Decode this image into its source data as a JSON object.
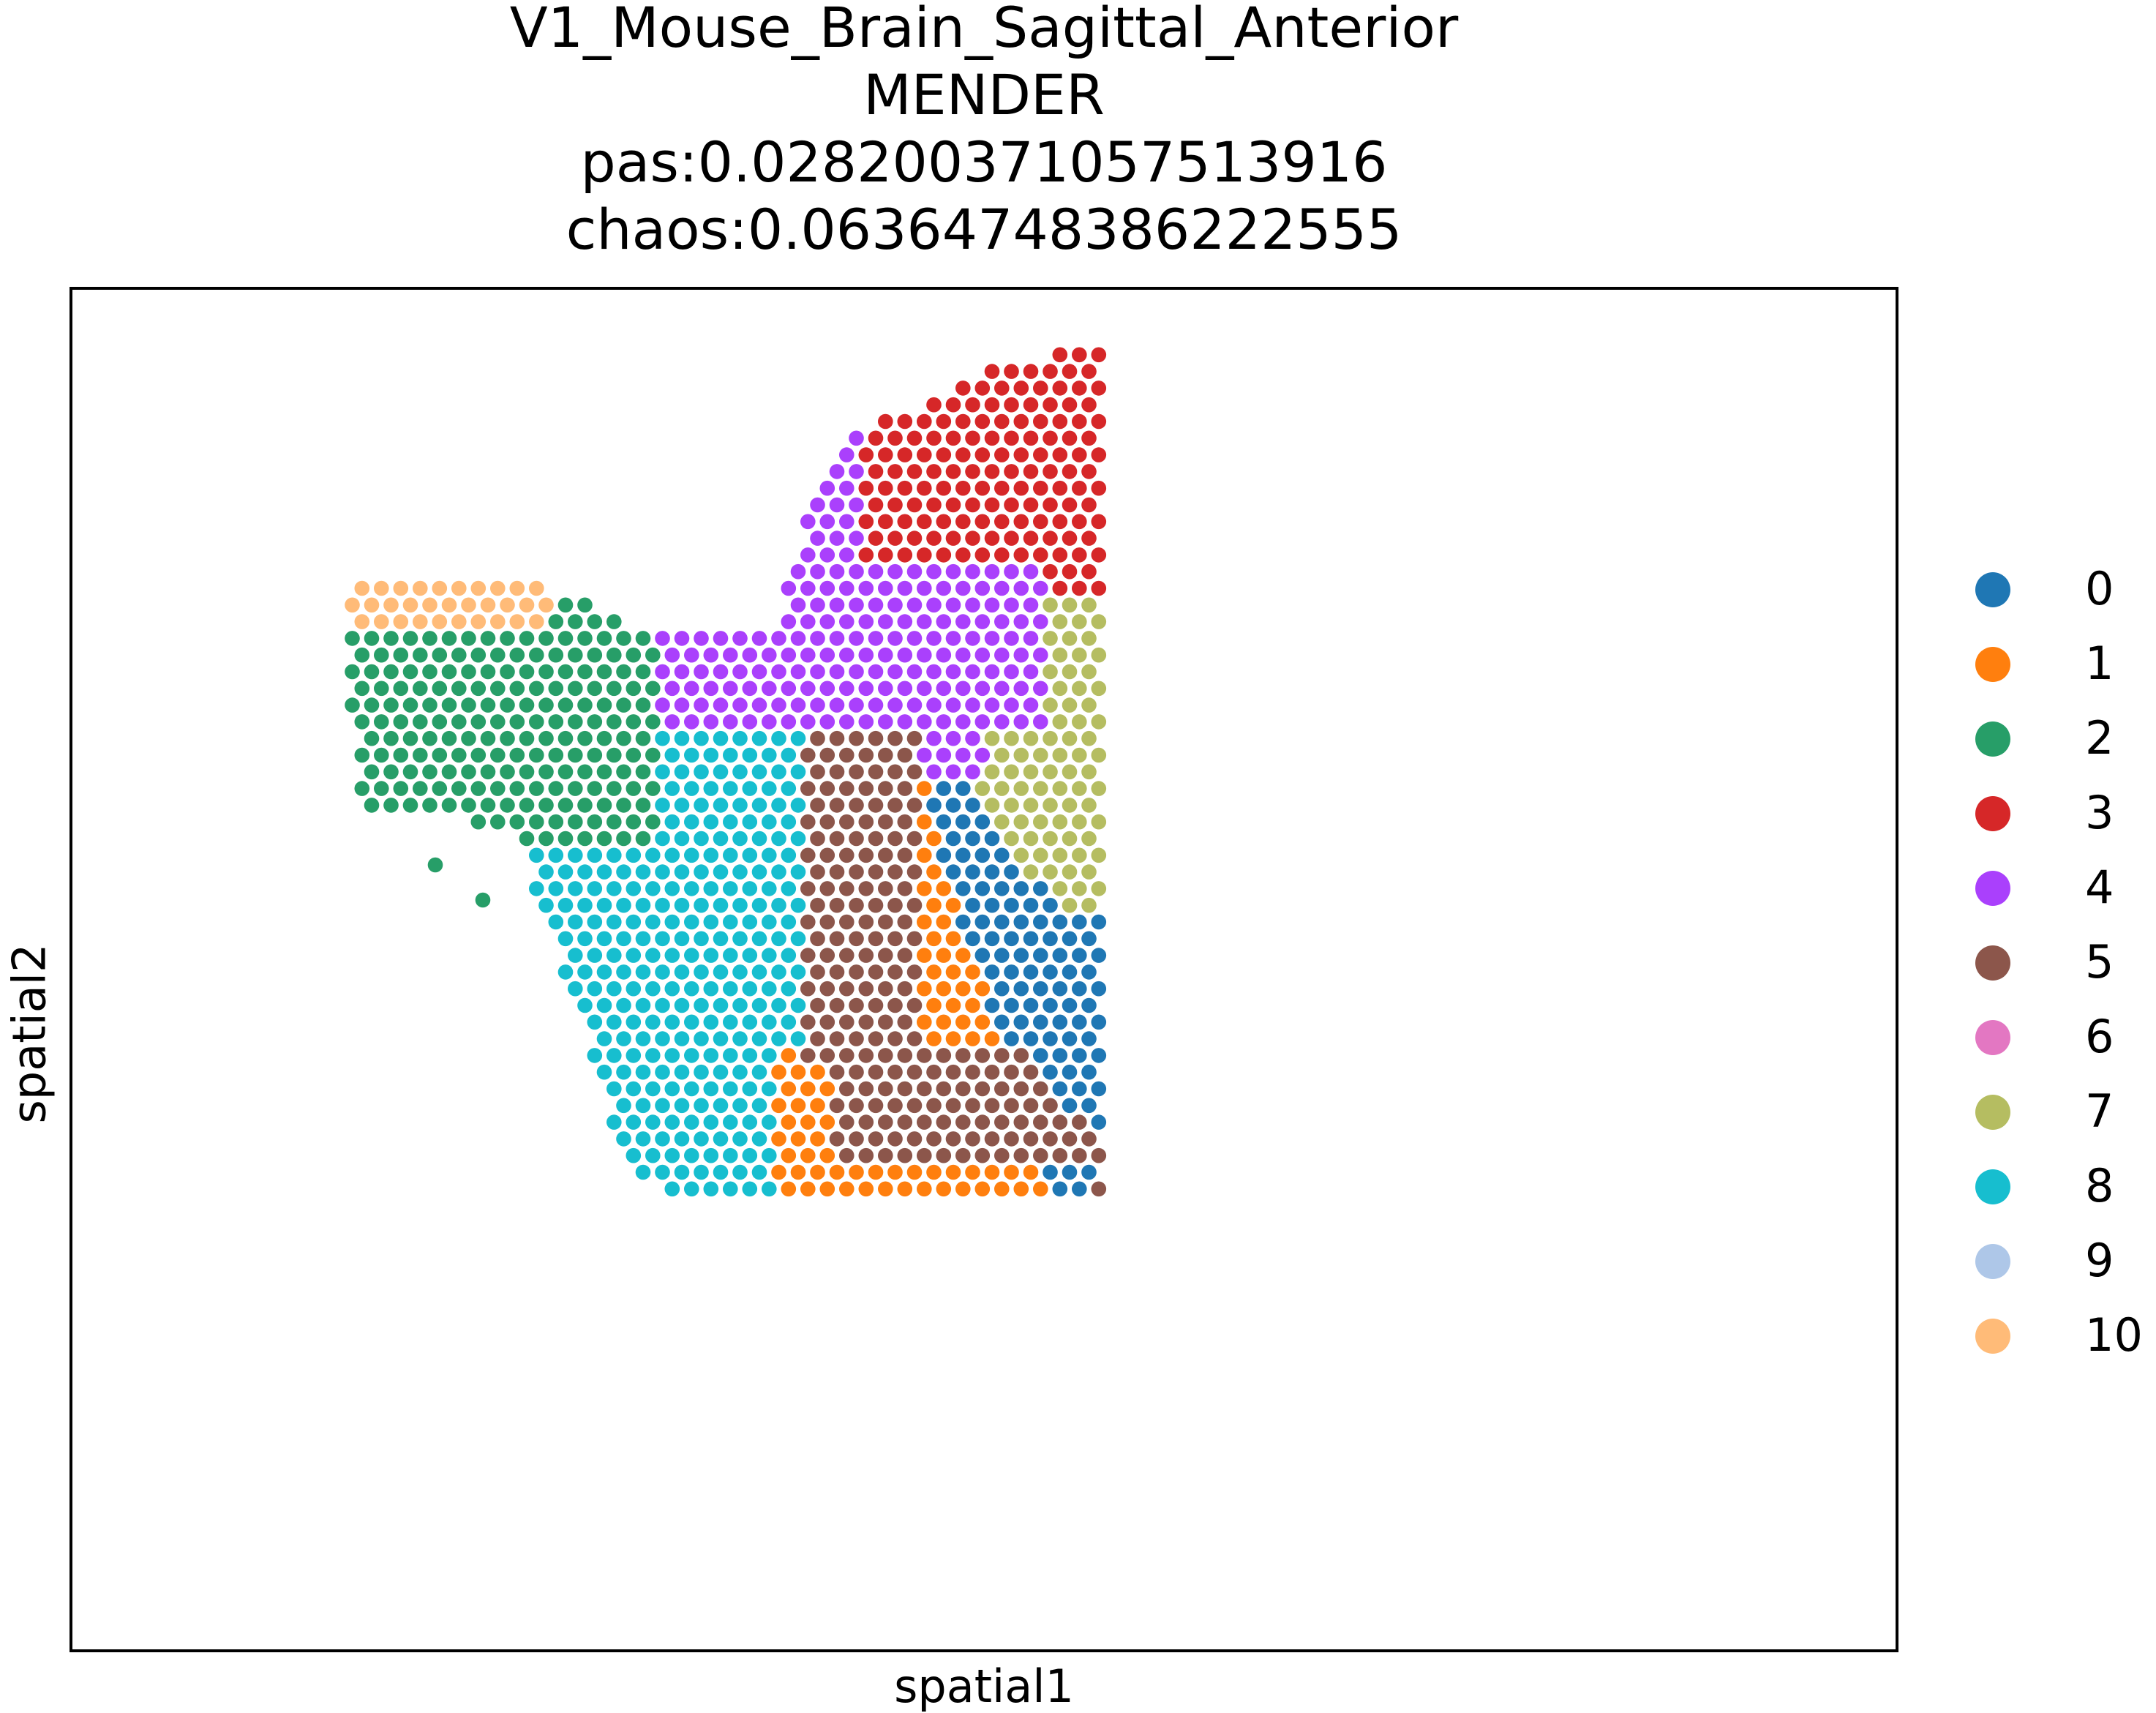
{
  "title_lines": [
    "V1_Mouse_Brain_Sagittal_Anterior",
    "MENDER",
    "pas:0.028200371057513916",
    "chaos:0.06364748386222555"
  ],
  "chart_data": {
    "type": "scatter",
    "title": "V1_Mouse_Brain_Sagittal_Anterior\nMENDER\npas:0.028200371057513916\nchaos:0.06364748386222555",
    "xlabel": "spatial1",
    "ylabel": "spatial2",
    "xticks": [],
    "yticks": [],
    "grid": false,
    "legend_position": "right",
    "colors": {
      "0": "#1f77b4",
      "1": "#ff7f0e",
      "2": "#279e68",
      "3": "#d62728",
      "4": "#aa40fc",
      "5": "#8c564b",
      "6": "#e377c2",
      "7": "#b5bd61",
      "8": "#17becf",
      "9": "#aec7e8",
      "10": "#ffbb78"
    },
    "series": [
      {
        "name": "0"
      },
      {
        "name": "1"
      },
      {
        "name": "2"
      },
      {
        "name": "3"
      },
      {
        "name": "4"
      },
      {
        "name": "5"
      },
      {
        "name": "6"
      },
      {
        "name": "7"
      },
      {
        "name": "8"
      },
      {
        "name": "9"
      },
      {
        "name": "10"
      }
    ],
    "domain_shape": {
      "tissue_outline": [
        [
          0.0,
          0.82
        ],
        [
          0.15,
          0.82
        ],
        [
          0.2,
          0.76
        ],
        [
          0.28,
          0.73
        ],
        [
          0.35,
          0.78
        ],
        [
          0.45,
          0.87
        ],
        [
          0.55,
          0.94
        ],
        [
          0.65,
          0.97
        ],
        [
          0.93,
          1.0
        ],
        [
          0.92,
          0.85
        ],
        [
          0.92,
          0.15
        ],
        [
          0.94,
          0.0
        ],
        [
          0.88,
          0.0
        ],
        [
          0.6,
          0.1
        ],
        [
          0.48,
          0.16
        ],
        [
          0.45,
          0.22
        ],
        [
          0.33,
          0.42
        ],
        [
          0.2,
          0.45
        ],
        [
          0.0,
          0.45
        ]
      ],
      "note_units": "normalized spatial1/spatial2 coordinates (0-1), y increasing downward"
    }
  }
}
